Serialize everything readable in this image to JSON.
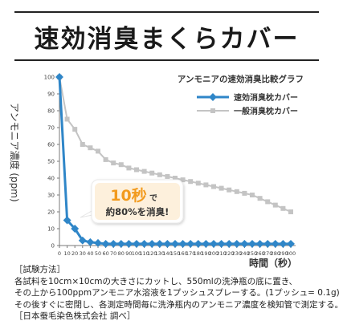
{
  "title": "速効消臭まくらカバー",
  "colors": {
    "fast": "#2f86c8",
    "normal": "#c4c4c4",
    "axis": "#7a7a7a",
    "callout_accent": "#f29a1d",
    "callout_bg": "#fdf0dc"
  },
  "chart_data": {
    "type": "line",
    "title": "アンモニアの速効消臭比較グラフ",
    "ylabel": "アンモニア濃度 (ppm)",
    "xlabel": "時間（秒）",
    "xlim": [
      0,
      300
    ],
    "ylim": [
      0,
      100
    ],
    "x": [
      0,
      10,
      20,
      30,
      40,
      50,
      60,
      70,
      80,
      90,
      100,
      110,
      120,
      130,
      140,
      150,
      160,
      170,
      180,
      190,
      200,
      210,
      220,
      230,
      240,
      250,
      260,
      270,
      280,
      290,
      300
    ],
    "x_ticks": [
      "0",
      "10",
      "20",
      "30",
      "40",
      "50",
      "60",
      "70",
      "80",
      "90",
      "100",
      "110",
      "120",
      "130",
      "140",
      "150",
      "160",
      "170",
      "180",
      "190",
      "200",
      "210",
      "220",
      "230",
      "240",
      "250",
      "260",
      "270",
      "280",
      "290",
      "300"
    ],
    "y_ticks": [
      "0",
      "10",
      "20",
      "30",
      "40",
      "50",
      "60",
      "70",
      "80",
      "90",
      "100"
    ],
    "grid": false,
    "legend_position": "top-right",
    "series": [
      {
        "name": "速効消臭枕カバー",
        "color": "#2f86c8",
        "values": [
          100,
          15,
          10,
          3,
          2,
          1.5,
          1,
          1,
          1,
          1,
          1,
          1,
          1,
          1,
          1,
          1,
          1,
          1,
          1,
          1,
          1,
          1,
          1,
          1,
          1,
          1,
          1,
          1,
          1,
          1,
          1
        ]
      },
      {
        "name": "一般消臭枕カバー",
        "color": "#c4c4c4",
        "values": [
          100,
          75,
          69,
          60,
          58,
          56,
          51,
          49,
          48,
          46,
          45,
          44,
          43,
          42,
          41,
          40,
          39,
          38,
          37,
          36,
          35,
          34,
          33,
          32,
          31,
          30,
          28,
          26,
          24,
          22,
          20
        ]
      }
    ],
    "annotation": {
      "big": "10秒",
      "suffix": "で",
      "line2": "約80%を消臭!"
    }
  },
  "method": {
    "heading": "［試験方法］",
    "lines": [
      "各試料を10cm×10cmの大きさにカットし、550mlの洗浄瓶の底に置き、",
      "その上から100ppmアンモニア水溶液を1プッシュスプレーする。(1プッシュ= 0.1g)",
      "その後すぐに密閉し、各測定時間毎に洗浄瓶内のアンモニア濃度を検知管で測定する。",
      "［日本蚕毛染色株式会社 調べ］"
    ]
  }
}
